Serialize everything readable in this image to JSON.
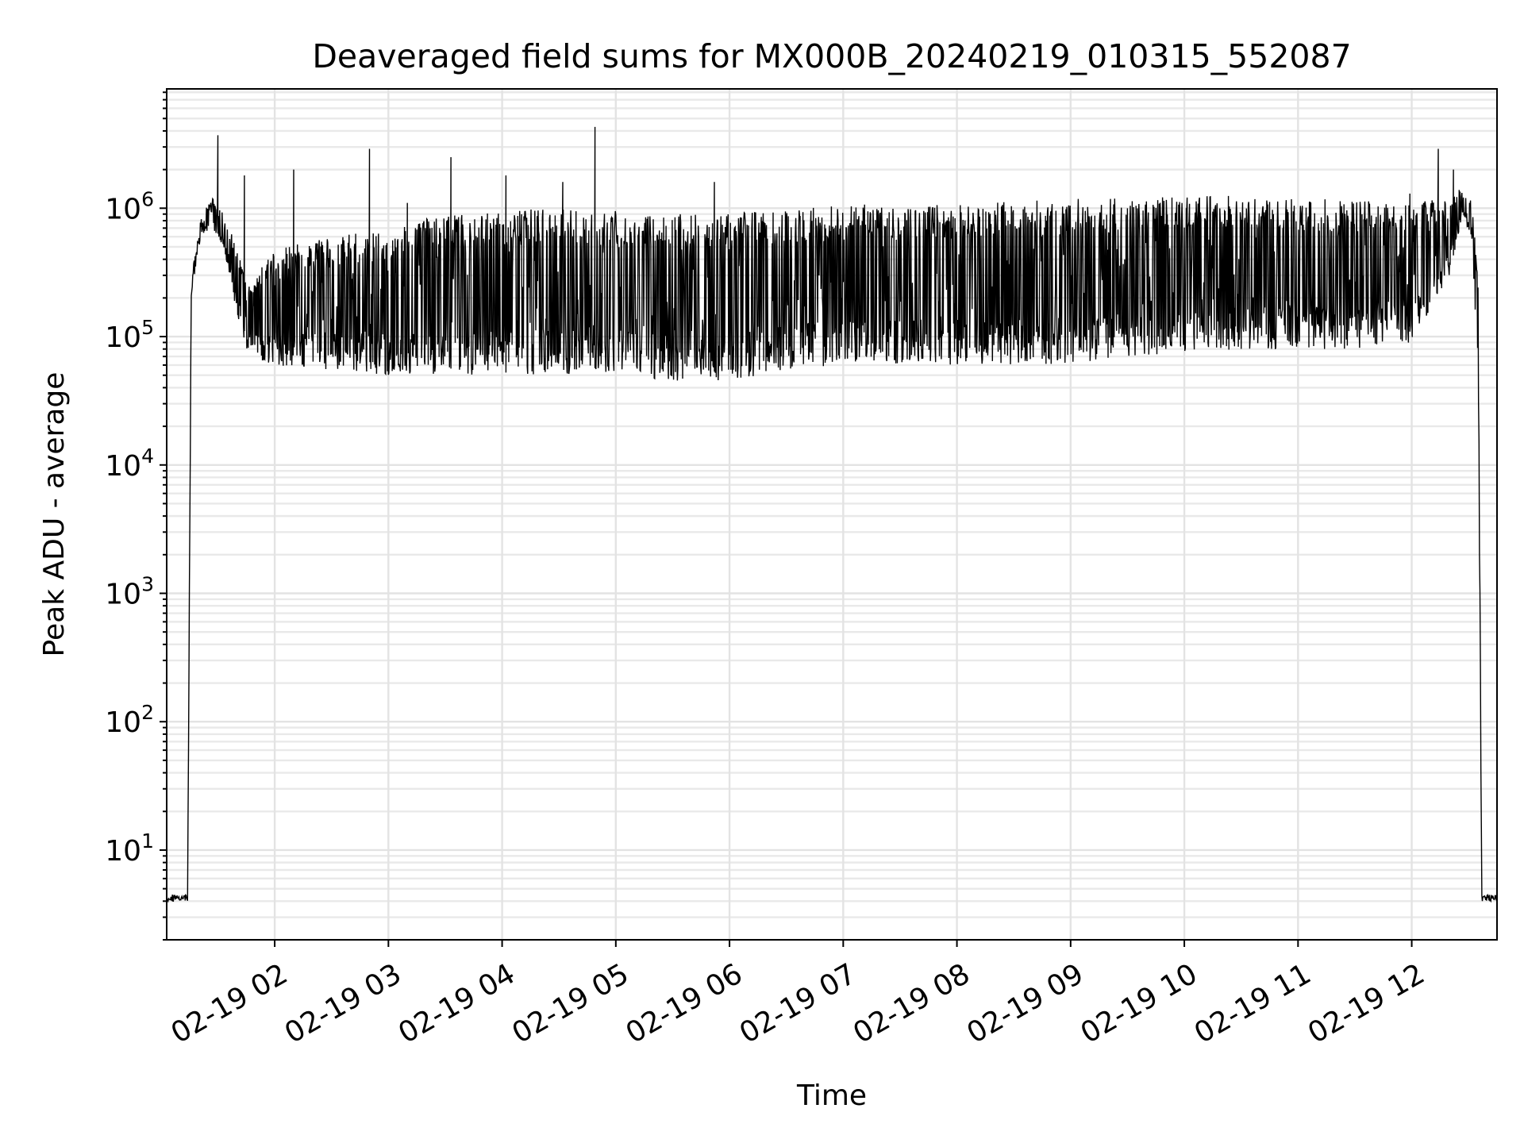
{
  "chart_data": {
    "type": "line",
    "title": "Deaveraged field sums for MX000B_20240219_010315_552087",
    "xlabel": "Time",
    "ylabel": "Peak ADU - average",
    "yscale": "log",
    "ylim": [
      2.0,
      8500000
    ],
    "xlim": [
      "2024-02-19 01:03",
      "2024-02-19 12:45"
    ],
    "grid": true,
    "x_tick_labels": [
      "02-19 02",
      "02-19 03",
      "02-19 04",
      "02-19 05",
      "02-19 06",
      "02-19 07",
      "02-19 08",
      "02-19 09",
      "02-19 10",
      "02-19 11",
      "02-19 12"
    ],
    "y_ticks": [
      {
        "base": "10",
        "exp": "1",
        "value": 10
      },
      {
        "base": "10",
        "exp": "2",
        "value": 100
      },
      {
        "base": "10",
        "exp": "3",
        "value": 1000
      },
      {
        "base": "10",
        "exp": "4",
        "value": 10000
      },
      {
        "base": "10",
        "exp": "5",
        "value": 100000
      },
      {
        "base": "10",
        "exp": "6",
        "value": 1000000
      }
    ],
    "series": [
      {
        "color": "#000000",
        "envelope": [
          {
            "t": "01:03",
            "low": 4,
            "high": 4.5
          },
          {
            "t": "01:14",
            "low": 4,
            "high": 4.5
          },
          {
            "t": "01:16",
            "low": 200000,
            "high": 300000
          },
          {
            "t": "01:21",
            "low": 600000,
            "high": 900000
          },
          {
            "t": "01:27",
            "low": 700000,
            "high": 1200000
          },
          {
            "t": "01:33",
            "low": 500000,
            "high": 900000
          },
          {
            "t": "01:40",
            "low": 150000,
            "high": 500000
          },
          {
            "t": "01:46",
            "low": 70000,
            "high": 250000
          },
          {
            "t": "02:00",
            "low": 60000,
            "high": 500000
          },
          {
            "t": "02:30",
            "low": 55000,
            "high": 600000
          },
          {
            "t": "03:00",
            "low": 50000,
            "high": 700000
          },
          {
            "t": "03:30",
            "low": 50000,
            "high": 900000
          },
          {
            "t": "04:00",
            "low": 50000,
            "high": 1000000
          },
          {
            "t": "04:30",
            "low": 50000,
            "high": 1000000
          },
          {
            "t": "05:00",
            "low": 50000,
            "high": 950000
          },
          {
            "t": "05:30",
            "low": 45000,
            "high": 900000
          },
          {
            "t": "06:00",
            "low": 45000,
            "high": 900000
          },
          {
            "t": "06:30",
            "low": 55000,
            "high": 1000000
          },
          {
            "t": "07:00",
            "low": 60000,
            "high": 1050000
          },
          {
            "t": "07:30",
            "low": 60000,
            "high": 1100000
          },
          {
            "t": "08:00",
            "low": 60000,
            "high": 1100000
          },
          {
            "t": "08:30",
            "low": 60000,
            "high": 1150000
          },
          {
            "t": "09:00",
            "low": 60000,
            "high": 1200000
          },
          {
            "t": "09:30",
            "low": 70000,
            "high": 1200000
          },
          {
            "t": "10:00",
            "low": 75000,
            "high": 1250000
          },
          {
            "t": "10:30",
            "low": 80000,
            "high": 1250000
          },
          {
            "t": "11:00",
            "low": 80000,
            "high": 1200000
          },
          {
            "t": "11:30",
            "low": 80000,
            "high": 1150000
          },
          {
            "t": "12:00",
            "low": 90000,
            "high": 1100000
          },
          {
            "t": "12:20",
            "low": 300000,
            "high": 1200000
          },
          {
            "t": "12:27",
            "low": 900000,
            "high": 1500000
          },
          {
            "t": "12:32",
            "low": 500000,
            "high": 1100000
          },
          {
            "t": "12:35",
            "low": 50000,
            "high": 300000
          },
          {
            "t": "12:37",
            "low": 4,
            "high": 4.5
          },
          {
            "t": "12:45",
            "low": 4,
            "high": 4.5
          }
        ],
        "spikes": [
          {
            "t": "01:30",
            "value": 3700000
          },
          {
            "t": "01:44",
            "value": 1800000
          },
          {
            "t": "02:10",
            "value": 2000000
          },
          {
            "t": "02:50",
            "value": 2900000
          },
          {
            "t": "03:10",
            "value": 1100000
          },
          {
            "t": "03:33",
            "value": 2500000
          },
          {
            "t": "04:02",
            "value": 1800000
          },
          {
            "t": "04:32",
            "value": 1600000
          },
          {
            "t": "04:49",
            "value": 4300000
          },
          {
            "t": "05:52",
            "value": 1600000
          },
          {
            "t": "11:59",
            "value": 1300000
          },
          {
            "t": "12:14",
            "value": 2900000
          },
          {
            "t": "12:22",
            "value": 2000000
          }
        ]
      }
    ]
  }
}
